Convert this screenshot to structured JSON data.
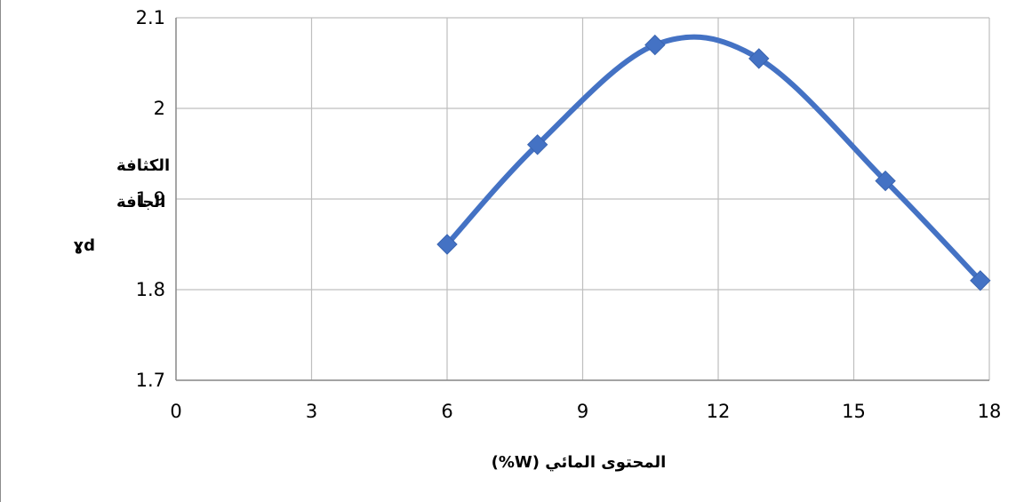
{
  "chart_data": {
    "type": "line",
    "smooth": true,
    "markers": "diamond",
    "title": "",
    "x": [
      6,
      8,
      10.6,
      12.9,
      15.7,
      17.8
    ],
    "series": [
      {
        "name": "",
        "values": [
          1.85,
          1.96,
          2.07,
          2.055,
          1.92,
          1.81
        ],
        "color": "#4472c4"
      }
    ],
    "xlim": [
      0,
      18
    ],
    "ylim": [
      1.7,
      2.1
    ],
    "xticks": [
      "0",
      "3",
      "6",
      "9",
      "12",
      "15",
      "18"
    ],
    "yticks": [
      "1.7",
      "1.8",
      "1.9",
      "2",
      "2.1"
    ],
    "xlabel": "المحتوى المائي (W%)",
    "ylabel_lines": [
      "الكثافة",
      "الجافة",
      "ɣd"
    ],
    "grid": true,
    "legend": "none",
    "colors": {
      "line": "#4472c4",
      "marker": "#4472c4",
      "grid": "#bfbfbf",
      "axis": "#8c8c8c"
    }
  }
}
